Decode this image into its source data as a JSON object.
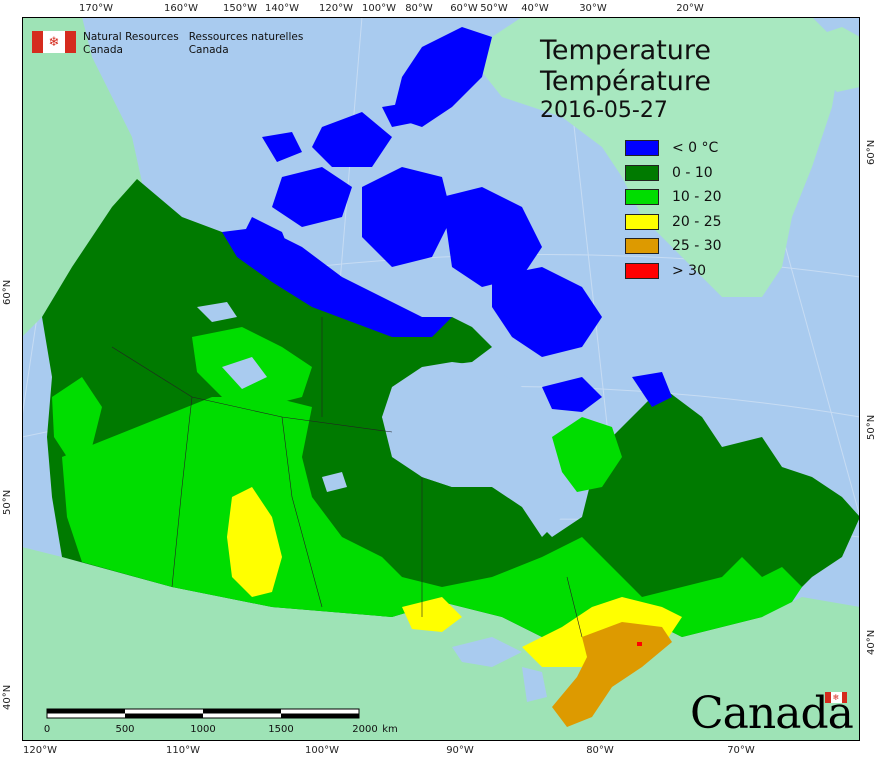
{
  "agency": {
    "name_en_line1": "Natural Resources",
    "name_en_line2": "Canada",
    "name_fr_line1": "Ressources naturelles",
    "name_fr_line2": "Canada",
    "flag_icon": "canada-flag-icon"
  },
  "title": {
    "en": "Temperature",
    "fr": "Température",
    "date": "2016-05-27"
  },
  "legend": [
    {
      "label": "< 0 °C",
      "color": "#0000ff"
    },
    {
      "label": "0 - 10",
      "color": "#007a00"
    },
    {
      "label": "10 - 20",
      "color": "#00dd00"
    },
    {
      "label": "20 - 25",
      "color": "#ffff00"
    },
    {
      "label": "25 - 30",
      "color": "#dd9a00"
    },
    {
      "label": "> 30",
      "color": "#ff0000"
    }
  ],
  "graticule": {
    "top_longitudes": [
      "170°W",
      "160°W",
      "150°W",
      "140°W",
      "120°W",
      "100°W",
      "80°W",
      "60°W",
      "50°W",
      "40°W",
      "30°W",
      "20°W"
    ],
    "bottom_longitudes": [
      "120°W",
      "110°W",
      "100°W",
      "90°W",
      "80°W",
      "70°W"
    ],
    "left_latitudes": [
      "60°N",
      "50°N",
      "40°N"
    ],
    "right_latitudes": [
      "60°N",
      "50°N",
      "40°N"
    ]
  },
  "scale_bar": {
    "labels": [
      "0",
      "500",
      "1000",
      "1500",
      "2000"
    ],
    "unit": "km"
  },
  "wordmark": {
    "text": "Canada",
    "flag_icon": "canada-flag-icon"
  },
  "colors": {
    "ocean": "#a9cbef",
    "land_outside": "#9ee3b6",
    "greenland": "#a8e8c0",
    "frame": "#000000"
  }
}
